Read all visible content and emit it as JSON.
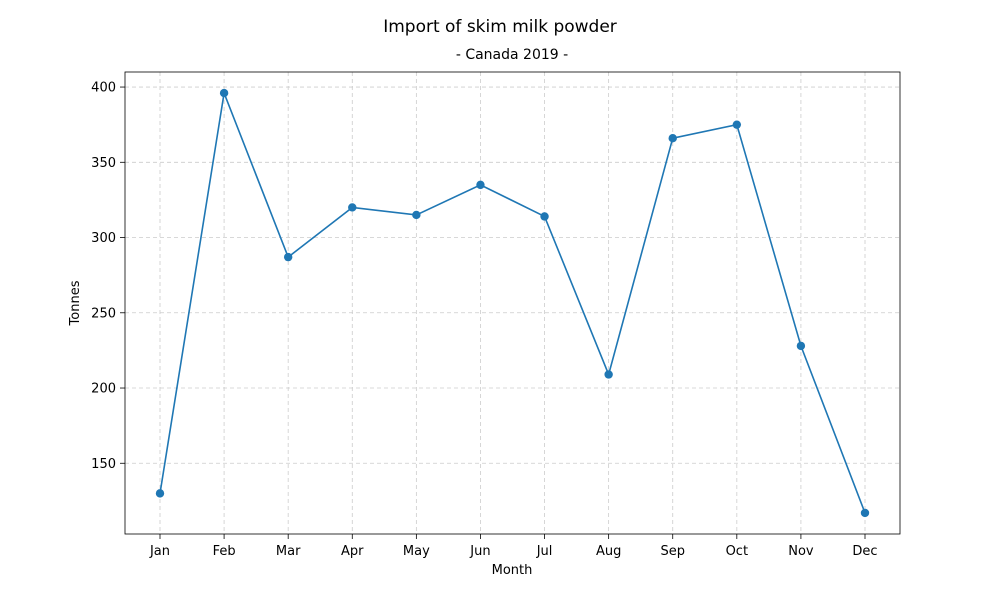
{
  "chart_data": {
    "type": "line",
    "title": "Import of skim milk powder",
    "subtitle": "- Canada 2019 -",
    "xlabel": "Month",
    "ylabel": "Tonnes",
    "categories": [
      "Jan",
      "Feb",
      "Mar",
      "Apr",
      "May",
      "Jun",
      "Jul",
      "Aug",
      "Sep",
      "Oct",
      "Nov",
      "Dec"
    ],
    "series": [
      {
        "values": [
          130,
          396,
          287,
          320,
          315,
          335,
          314,
          209,
          366,
          375,
          228,
          117
        ],
        "color": "#1f77b4",
        "marker": "circle"
      }
    ],
    "ylim": [
      103,
      410
    ],
    "yticks": [
      150,
      200,
      250,
      300,
      350,
      400
    ],
    "grid": true,
    "grid_style": "dashed"
  }
}
